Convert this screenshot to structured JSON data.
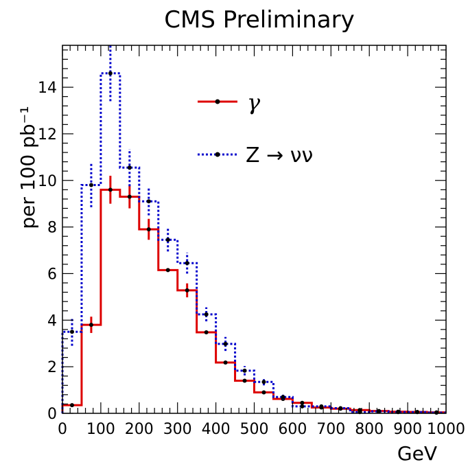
{
  "chart_data": {
    "type": "histogram",
    "title": "CMS Preliminary",
    "xlabel": "GeV",
    "ylabel": "per 100 pb⁻¹",
    "xlim": [
      0,
      1000
    ],
    "ylim": [
      0,
      15.8
    ],
    "bin_width": 50,
    "x_ticks": [
      0,
      100,
      200,
      300,
      400,
      500,
      600,
      700,
      800,
      900,
      1000
    ],
    "x_tick_labels": [
      "0",
      "100",
      "200",
      "300",
      "400",
      "500",
      "600",
      "700",
      "800",
      "900",
      "1000"
    ],
    "y_ticks": [
      0,
      2,
      4,
      6,
      8,
      10,
      12,
      14
    ],
    "y_tick_labels": [
      "0",
      "2",
      "4",
      "6",
      "8",
      "10",
      "12",
      "14"
    ],
    "grid": false,
    "legend_position": "top-center",
    "series": [
      {
        "name": "γ",
        "color": "#dd0000",
        "style": "solid",
        "bin_centers": [
          25,
          75,
          125,
          175,
          225,
          275,
          325,
          375,
          425,
          475,
          525,
          575,
          625,
          675,
          725,
          775,
          825,
          875,
          925,
          975
        ],
        "values": [
          0.35,
          3.8,
          9.6,
          9.3,
          7.9,
          6.15,
          5.28,
          3.48,
          2.18,
          1.4,
          0.9,
          0.62,
          0.45,
          0.25,
          0.2,
          0.14,
          0.1,
          0.07,
          0.06,
          0.04
        ],
        "errors": [
          0.08,
          0.35,
          0.6,
          0.5,
          0.45,
          0.08,
          0.3,
          0.06,
          0.05,
          0.05,
          0.05,
          0.05,
          0.05,
          0.05,
          0.04,
          0.03,
          0.03,
          0.02,
          0.02,
          0.02
        ]
      },
      {
        "name": "Z → νν",
        "color": "#0000cc",
        "style": "dotted",
        "bin_centers": [
          25,
          75,
          125,
          175,
          225,
          275,
          325,
          375,
          425,
          475,
          525,
          575,
          625,
          675,
          725,
          775,
          825,
          875,
          925,
          975
        ],
        "values": [
          3.5,
          9.8,
          14.6,
          10.55,
          9.1,
          7.45,
          6.45,
          4.25,
          2.98,
          1.83,
          1.35,
          0.7,
          0.3,
          0.3,
          0.22,
          0.05,
          0.08,
          0.05,
          0.05,
          0.03
        ],
        "errors": [
          0.6,
          0.95,
          1.2,
          0.8,
          0.6,
          0.5,
          0.45,
          0.3,
          0.3,
          0.2,
          0.15,
          0.1,
          0.07,
          0.07,
          0.05,
          0.03,
          0.03,
          0.02,
          0.02,
          0.02
        ]
      }
    ]
  }
}
